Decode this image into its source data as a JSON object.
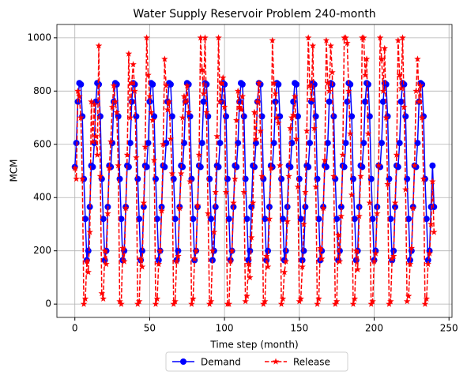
{
  "chart_data": {
    "type": "line",
    "title": "Water Supply Reservoir Problem 240-month",
    "xlabel": "Time step (month)",
    "ylabel": "MCM",
    "x": [
      0,
      1,
      2,
      3,
      4,
      5,
      6,
      7,
      8,
      9,
      10,
      11,
      12,
      13,
      14,
      15,
      16,
      17,
      18,
      19,
      20,
      21,
      22,
      23,
      24,
      25,
      26,
      27,
      28,
      29,
      30,
      31,
      32,
      33,
      34,
      35,
      36,
      37,
      38,
      39,
      40,
      41,
      42,
      43,
      44,
      45,
      46,
      47,
      48,
      49,
      50,
      51,
      52,
      53,
      54,
      55,
      56,
      57,
      58,
      59,
      60,
      61,
      62,
      63,
      64,
      65,
      66,
      67,
      68,
      69,
      70,
      71,
      72,
      73,
      74,
      75,
      76,
      77,
      78,
      79,
      80,
      81,
      82,
      83,
      84,
      85,
      86,
      87,
      88,
      89,
      90,
      91,
      92,
      93,
      94,
      95,
      96,
      97,
      98,
      99,
      100,
      101,
      102,
      103,
      104,
      105,
      106,
      107,
      108,
      109,
      110,
      111,
      112,
      113,
      114,
      115,
      116,
      117,
      118,
      119,
      120,
      121,
      122,
      123,
      124,
      125,
      126,
      127,
      128,
      129,
      130,
      131,
      132,
      133,
      134,
      135,
      136,
      137,
      138,
      139,
      140,
      141,
      142,
      143,
      144,
      145,
      146,
      147,
      148,
      149,
      150,
      151,
      152,
      153,
      154,
      155,
      156,
      157,
      158,
      159,
      160,
      161,
      162,
      163,
      164,
      165,
      166,
      167,
      168,
      169,
      170,
      171,
      172,
      173,
      174,
      175,
      176,
      177,
      178,
      179,
      180,
      181,
      182,
      183,
      184,
      185,
      186,
      187,
      188,
      189,
      190,
      191,
      192,
      193,
      194,
      195,
      196,
      197,
      198,
      199,
      200,
      201,
      202,
      203,
      204,
      205,
      206,
      207,
      208,
      209,
      210,
      211,
      212,
      213,
      214,
      215,
      216,
      217,
      218,
      219,
      220,
      221,
      222,
      223,
      224,
      225,
      226,
      227,
      228,
      229,
      230,
      231,
      232,
      233,
      234,
      235,
      236,
      237,
      238,
      239,
      240
    ],
    "series": [
      {
        "name": "Demand",
        "color": "blue",
        "marker": "circle",
        "dashed": false,
        "values": [
          515,
          605,
          760,
          830,
          825,
          705,
          470,
          320,
          165,
          200,
          365,
          520,
          515,
          605,
          760,
          830,
          825,
          705,
          470,
          320,
          165,
          200,
          365,
          520,
          515,
          605,
          760,
          830,
          825,
          705,
          470,
          320,
          165,
          200,
          365,
          520,
          515,
          605,
          760,
          830,
          825,
          705,
          470,
          320,
          165,
          200,
          365,
          520,
          515,
          605,
          760,
          830,
          825,
          705,
          470,
          320,
          165,
          200,
          365,
          520,
          515,
          605,
          760,
          830,
          825,
          705,
          470,
          320,
          165,
          200,
          365,
          520,
          515,
          605,
          760,
          830,
          825,
          705,
          470,
          320,
          165,
          200,
          365,
          520,
          515,
          605,
          760,
          830,
          825,
          705,
          470,
          320,
          165,
          200,
          365,
          520,
          515,
          605,
          760,
          830,
          825,
          705,
          470,
          320,
          165,
          200,
          365,
          520,
          515,
          605,
          760,
          830,
          825,
          705,
          470,
          320,
          165,
          200,
          365,
          520,
          515,
          605,
          760,
          830,
          825,
          705,
          470,
          320,
          165,
          200,
          365,
          520,
          515,
          605,
          760,
          830,
          825,
          705,
          470,
          320,
          165,
          200,
          365,
          520,
          515,
          605,
          760,
          830,
          825,
          705,
          470,
          320,
          165,
          200,
          365,
          520,
          515,
          605,
          760,
          830,
          825,
          705,
          470,
          320,
          165,
          200,
          365,
          520,
          515,
          605,
          760,
          830,
          825,
          705,
          470,
          320,
          165,
          200,
          365,
          520,
          515,
          605,
          760,
          830,
          825,
          705,
          470,
          320,
          165,
          200,
          365,
          520,
          515,
          605,
          760,
          830,
          825,
          705,
          470,
          320,
          165,
          200,
          365,
          520,
          515,
          605,
          760,
          830,
          825,
          705,
          470,
          320,
          165,
          200,
          365,
          520,
          515,
          605,
          760,
          830,
          825,
          705,
          470,
          320,
          165,
          200,
          365,
          520,
          515,
          605,
          760,
          830,
          825,
          705,
          470,
          320,
          165,
          200,
          365,
          520,
          365
        ]
      },
      {
        "name": "Release",
        "color": "red",
        "marker": "star",
        "dashed": true,
        "values": [
          510,
          470,
          800,
          780,
          700,
          470,
          0,
          20,
          160,
          120,
          270,
          760,
          610,
          750,
          630,
          560,
          970,
          480,
          40,
          20,
          200,
          150,
          340,
          510,
          610,
          740,
          820,
          760,
          720,
          520,
          10,
          0,
          210,
          160,
          360,
          560,
          940,
          700,
          830,
          900,
          800,
          550,
          0,
          10,
          170,
          140,
          380,
          590,
          1000,
          860,
          780,
          720,
          690,
          540,
          0,
          20,
          150,
          200,
          350,
          600,
          920,
          820,
          730,
          760,
          620,
          490,
          0,
          10,
          160,
          180,
          360,
          490,
          700,
          780,
          760,
          820,
          720,
          460,
          0,
          20,
          170,
          200,
          370,
          560,
          1000,
          880,
          790,
          1000,
          720,
          340,
          0,
          10,
          200,
          270,
          420,
          630,
          1000,
          760,
          830,
          850,
          740,
          420,
          0,
          0,
          160,
          200,
          380,
          470,
          690,
          800,
          740,
          730,
          780,
          420,
          10,
          30,
          150,
          100,
          250,
          380,
          720,
          620,
          760,
          830,
          650,
          480,
          0,
          10,
          180,
          140,
          320,
          510,
          990,
          830,
          790,
          700,
          680,
          520,
          0,
          20,
          120,
          160,
          310,
          480,
          660,
          700,
          710,
          780,
          620,
          440,
          10,
          20,
          140,
          300,
          420,
          650,
          1000,
          820,
          770,
          970,
          660,
          440,
          0,
          20,
          210,
          170,
          360,
          540,
          990,
          830,
          800,
          970,
          870,
          480,
          0,
          10,
          260,
          160,
          330,
          560,
          1000,
          1000,
          980,
          800,
          640,
          410,
          0,
          20,
          200,
          130,
          330,
          480,
          1000,
          1000,
          860,
          920,
          640,
          380,
          0,
          10,
          160,
          190,
          340,
          520,
          1000,
          920,
          800,
          960,
          700,
          450,
          0,
          10,
          170,
          180,
          380,
          560,
          990,
          860,
          810,
          1000,
          740,
          430,
          10,
          30,
          150,
          210,
          360,
          520,
          800,
          920,
          760,
          820,
          700,
          470,
          0,
          20,
          150,
          190,
          300,
          460,
          270
        ]
      }
    ],
    "xlim": [
      -12,
      252
    ],
    "xticks": [
      0,
      50,
      100,
      150,
      200,
      250
    ],
    "ylim": [
      -50,
      1050
    ],
    "yticks": [
      0,
      200,
      400,
      600,
      800,
      1000
    ],
    "grid": true,
    "legend": "bottom"
  }
}
